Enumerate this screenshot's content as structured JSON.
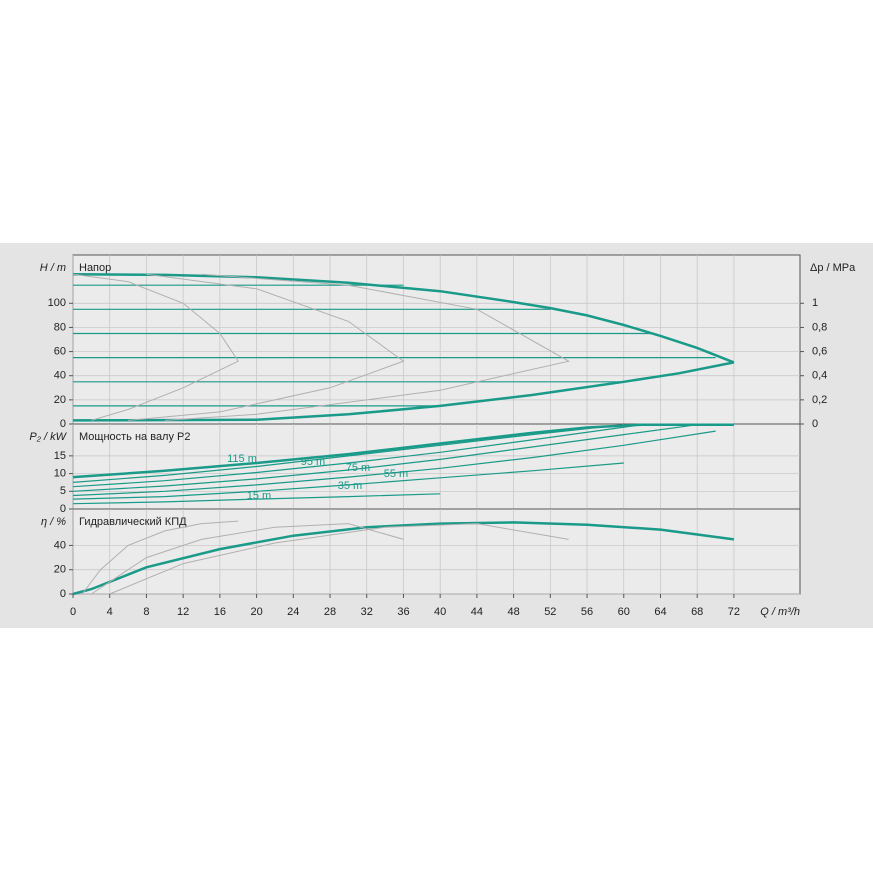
{
  "chart_data": [
    {
      "type": "line",
      "title": "Напор",
      "ylabel": "H / m",
      "y2label": "Δp / MPa",
      "xlim": [
        0,
        79.2
      ],
      "ylim": [
        0,
        140
      ],
      "yticks": [
        0,
        20,
        40,
        60,
        80,
        100
      ],
      "y2lim": [
        0,
        1.4
      ],
      "y2ticks": [
        0,
        {
          "value": 0.2,
          "label": "0,2"
        },
        {
          "value": 0.4,
          "label": "0,4"
        },
        {
          "value": 0.6,
          "label": "0,6"
        },
        {
          "value": 0.8,
          "label": "0,8"
        },
        1
      ],
      "grid": true,
      "series": [
        {
          "color": "#1a9a88",
          "line_width": 2.5,
          "x": [
            0,
            10,
            20,
            30,
            40,
            48,
            52,
            56,
            60,
            64,
            68,
            72
          ],
          "values": [
            124,
            123.5,
            121.5,
            117,
            110,
            101,
            96,
            90,
            82,
            73,
            63,
            51
          ]
        },
        {
          "color": "#1a9a88",
          "line_width": 2.5,
          "x": [
            0,
            20,
            30,
            40,
            50,
            60,
            66,
            72
          ],
          "values": [
            3,
            3.5,
            8,
            15,
            24,
            35,
            42,
            51
          ]
        },
        {
          "color": "#1a9a88",
          "line_width": 1.2,
          "x": [
            0,
            36
          ],
          "values": [
            115,
            115
          ]
        },
        {
          "color": "#1a9a88",
          "line_width": 1.2,
          "x": [
            0,
            52
          ],
          "values": [
            95,
            95
          ]
        },
        {
          "color": "#1a9a88",
          "line_width": 1.2,
          "x": [
            0,
            63
          ],
          "values": [
            75,
            75
          ]
        },
        {
          "color": "#1a9a88",
          "line_width": 1.2,
          "x": [
            0,
            70
          ],
          "values": [
            55,
            55
          ]
        },
        {
          "color": "#1a9a88",
          "line_width": 1.2,
          "x": [
            0,
            60
          ],
          "values": [
            35,
            35
          ]
        },
        {
          "color": "#1a9a88",
          "line_width": 1.2,
          "x": [
            0,
            40
          ],
          "values": [
            15,
            15
          ]
        },
        {
          "color": "#b0b0b0",
          "line_width": 1,
          "x": [
            0,
            6,
            12,
            16,
            18,
            12,
            6,
            2
          ],
          "values": [
            124,
            118,
            100,
            75,
            52,
            30,
            12,
            3
          ]
        },
        {
          "color": "#b0b0b0",
          "line_width": 1,
          "x": [
            8,
            20,
            30,
            36,
            28,
            16,
            6
          ],
          "values": [
            124,
            112,
            85,
            52,
            30,
            10,
            3
          ]
        },
        {
          "color": "#b0b0b0",
          "line_width": 1,
          "x": [
            14,
            30,
            44,
            54,
            40,
            20,
            10
          ],
          "values": [
            124,
            115,
            95,
            52,
            28,
            8,
            3
          ]
        }
      ]
    },
    {
      "type": "line",
      "title": "Мощность на валу P2",
      "ylabel": "P₂ / kW",
      "xlim": [
        0,
        79.2
      ],
      "ylim": [
        0,
        24
      ],
      "yticks": [
        0,
        5,
        10,
        15
      ],
      "grid": true,
      "series": [
        {
          "color": "#1a9a88",
          "line_width": 2.5,
          "x": [
            0,
            10,
            20,
            30,
            40,
            50,
            56,
            62,
            72
          ],
          "values": [
            9,
            10.8,
            13,
            15.5,
            18.5,
            21.5,
            23,
            23.8,
            23.8
          ]
        },
        {
          "name": "115 m",
          "color": "#1a9a88",
          "line_width": 1.2,
          "x": [
            0,
            10,
            20,
            30,
            40,
            50,
            60
          ],
          "values": [
            7.5,
            9.5,
            12,
            15,
            18,
            21,
            23.8
          ]
        },
        {
          "name": "95 m",
          "color": "#1a9a88",
          "line_width": 1.2,
          "x": [
            0,
            10,
            20,
            30,
            40,
            50,
            62
          ],
          "values": [
            6.3,
            8,
            10.3,
            13,
            16,
            19.5,
            23.8
          ]
        },
        {
          "name": "75 m",
          "color": "#1a9a88",
          "line_width": 1.2,
          "x": [
            0,
            10,
            20,
            30,
            40,
            50,
            60,
            68
          ],
          "values": [
            5,
            6.5,
            8.5,
            11,
            14,
            17.5,
            21,
            23.8
          ]
        },
        {
          "name": "55 m",
          "color": "#1a9a88",
          "line_width": 1.2,
          "x": [
            0,
            10,
            20,
            30,
            40,
            50,
            60,
            70
          ],
          "values": [
            3.8,
            5,
            6.8,
            9,
            11.5,
            14.5,
            18,
            22
          ]
        },
        {
          "name": "35 m",
          "color": "#1a9a88",
          "line_width": 1.2,
          "x": [
            0,
            10,
            20,
            30,
            40,
            50,
            60
          ],
          "values": [
            2.8,
            3.5,
            5,
            6.8,
            8.8,
            10.8,
            13
          ]
        },
        {
          "name": "15 m",
          "color": "#1a9a88",
          "line_width": 1.2,
          "x": [
            0,
            10,
            20,
            30,
            40
          ],
          "values": [
            1.5,
            2,
            2.8,
            3.5,
            4.3
          ]
        }
      ]
    },
    {
      "type": "line",
      "title": "Гидравлический КПД",
      "ylabel": "η / %",
      "xlabel": "Q / m³/h",
      "xlim": [
        0,
        79.2
      ],
      "ylim": [
        0,
        70
      ],
      "yticks": [
        0,
        20,
        40
      ],
      "xticks": [
        0,
        4,
        8,
        12,
        16,
        20,
        24,
        28,
        32,
        36,
        40,
        44,
        48,
        52,
        56,
        60,
        64,
        68,
        72
      ],
      "grid": true,
      "series": [
        {
          "color": "#1a9a88",
          "line_width": 2.5,
          "x": [
            0,
            2,
            8,
            16,
            24,
            32,
            40,
            48,
            56,
            64,
            72
          ],
          "values": [
            0,
            4,
            22,
            37,
            48,
            55,
            58,
            59,
            57,
            53,
            45
          ]
        },
        {
          "color": "#b0b0b0",
          "line_width": 1,
          "x": [
            1,
            3,
            6,
            10,
            14,
            18
          ],
          "values": [
            0,
            20,
            40,
            52,
            58,
            60
          ]
        },
        {
          "color": "#b0b0b0",
          "line_width": 1,
          "x": [
            2,
            8,
            14,
            22,
            30,
            36
          ],
          "values": [
            0,
            30,
            45,
            55,
            58,
            45
          ]
        },
        {
          "color": "#b0b0b0",
          "line_width": 1,
          "x": [
            4,
            12,
            22,
            34,
            44,
            54
          ],
          "values": [
            0,
            25,
            42,
            55,
            58,
            45
          ]
        }
      ]
    }
  ]
}
